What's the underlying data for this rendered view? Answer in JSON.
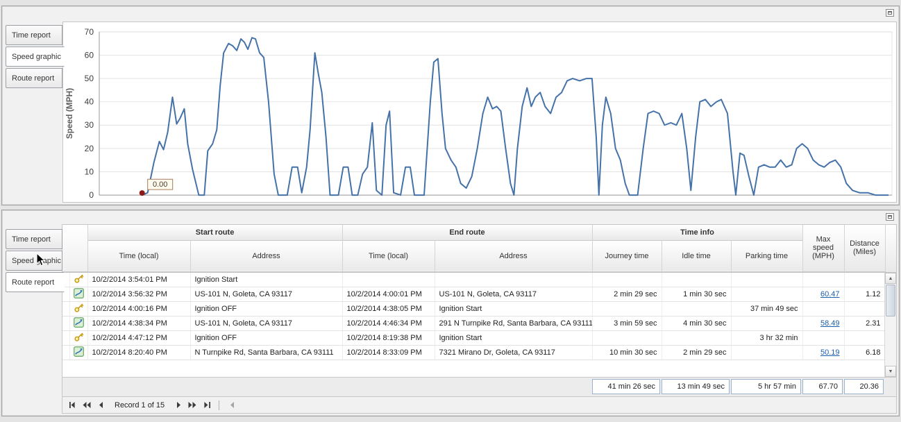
{
  "top_panel": {
    "tabs": [
      {
        "label": "Time report",
        "selected": false
      },
      {
        "label": "Speed graphic",
        "selected": true
      },
      {
        "label": "Route report",
        "selected": false
      }
    ]
  },
  "bottom_panel": {
    "tabs": [
      {
        "label": "Time report",
        "selected": false
      },
      {
        "label": "Speed graphic",
        "selected": false
      },
      {
        "label": "Route report",
        "selected": true
      }
    ]
  },
  "chart_data": {
    "type": "line",
    "title": "",
    "xlabel": "",
    "ylabel": "Speed (MPH)",
    "ylim": [
      0,
      70
    ],
    "yticks": [
      0,
      10,
      20,
      30,
      40,
      50,
      60,
      70
    ],
    "xticks": [],
    "grid": true,
    "legend": "none",
    "line_color": "#4472a8",
    "annotation": {
      "text": "0.00",
      "marker_color": "#8c1a18",
      "box_bg": "#fffcf0",
      "box_border": "#a87b5a"
    },
    "points_x_unit": "plot_px_0_1147",
    "points": [
      [
        62,
        0
      ],
      [
        70,
        1
      ],
      [
        79,
        14
      ],
      [
        87,
        23
      ],
      [
        93,
        19.5
      ],
      [
        99,
        27
      ],
      [
        106,
        42
      ],
      [
        112,
        30.5
      ],
      [
        117,
        33
      ],
      [
        123,
        37
      ],
      [
        128,
        22
      ],
      [
        135,
        11
      ],
      [
        144,
        0
      ],
      [
        152,
        0
      ],
      [
        157,
        19
      ],
      [
        164,
        22
      ],
      [
        170,
        28
      ],
      [
        175,
        47
      ],
      [
        180,
        61
      ],
      [
        187,
        65
      ],
      [
        193,
        64
      ],
      [
        199,
        62
      ],
      [
        205,
        67
      ],
      [
        210,
        65.5
      ],
      [
        215,
        62.5
      ],
      [
        221,
        67.5
      ],
      [
        226,
        67
      ],
      [
        232,
        61
      ],
      [
        238,
        59
      ],
      [
        245,
        40
      ],
      [
        253,
        9
      ],
      [
        259,
        0
      ],
      [
        272,
        0
      ],
      [
        279,
        12
      ],
      [
        287,
        12
      ],
      [
        293,
        1
      ],
      [
        300,
        12
      ],
      [
        305,
        28
      ],
      [
        312,
        61
      ],
      [
        317,
        52
      ],
      [
        322,
        44
      ],
      [
        328,
        25
      ],
      [
        334,
        0
      ],
      [
        346,
        0
      ],
      [
        353,
        12
      ],
      [
        360,
        12
      ],
      [
        366,
        0
      ],
      [
        374,
        0
      ],
      [
        381,
        9
      ],
      [
        388,
        12
      ],
      [
        395,
        31
      ],
      [
        401,
        2
      ],
      [
        409,
        0
      ],
      [
        415,
        30
      ],
      [
        420,
        36
      ],
      [
        426,
        1
      ],
      [
        436,
        0
      ],
      [
        443,
        12
      ],
      [
        450,
        12
      ],
      [
        456,
        0
      ],
      [
        470,
        0
      ],
      [
        479,
        40
      ],
      [
        484,
        57
      ],
      [
        490,
        58.5
      ],
      [
        496,
        35
      ],
      [
        501,
        20
      ],
      [
        509,
        15
      ],
      [
        516,
        12
      ],
      [
        523,
        5
      ],
      [
        531,
        3
      ],
      [
        539,
        8
      ],
      [
        547,
        20
      ],
      [
        555,
        35
      ],
      [
        562,
        42
      ],
      [
        569,
        37
      ],
      [
        575,
        38
      ],
      [
        581,
        36
      ],
      [
        588,
        20
      ],
      [
        595,
        5
      ],
      [
        600,
        0
      ],
      [
        605,
        20
      ],
      [
        612,
        38
      ],
      [
        619,
        46
      ],
      [
        625,
        38
      ],
      [
        631,
        42
      ],
      [
        638,
        44
      ],
      [
        645,
        38
      ],
      [
        653,
        35
      ],
      [
        661,
        42
      ],
      [
        669,
        44
      ],
      [
        677,
        49
      ],
      [
        685,
        50
      ],
      [
        695,
        49
      ],
      [
        705,
        50
      ],
      [
        713,
        50
      ],
      [
        719,
        25
      ],
      [
        723,
        0
      ],
      [
        728,
        30
      ],
      [
        733,
        42
      ],
      [
        740,
        35
      ],
      [
        747,
        20
      ],
      [
        754,
        15
      ],
      [
        761,
        5
      ],
      [
        767,
        0
      ],
      [
        779,
        0
      ],
      [
        787,
        20
      ],
      [
        794,
        35
      ],
      [
        802,
        36
      ],
      [
        810,
        35
      ],
      [
        818,
        30
      ],
      [
        827,
        31
      ],
      [
        835,
        30
      ],
      [
        843,
        35
      ],
      [
        850,
        20
      ],
      [
        856,
        2
      ],
      [
        863,
        25
      ],
      [
        869,
        40
      ],
      [
        877,
        41
      ],
      [
        885,
        38
      ],
      [
        893,
        40
      ],
      [
        900,
        41
      ],
      [
        909,
        35
      ],
      [
        917,
        10
      ],
      [
        921,
        0
      ],
      [
        927,
        18
      ],
      [
        933,
        17
      ],
      [
        940,
        8
      ],
      [
        947,
        0
      ],
      [
        954,
        12
      ],
      [
        962,
        13
      ],
      [
        970,
        12
      ],
      [
        978,
        12
      ],
      [
        986,
        15
      ],
      [
        994,
        12
      ],
      [
        1002,
        13
      ],
      [
        1009,
        20
      ],
      [
        1017,
        22
      ],
      [
        1025,
        20
      ],
      [
        1033,
        15
      ],
      [
        1041,
        13
      ],
      [
        1049,
        12
      ],
      [
        1057,
        14
      ],
      [
        1065,
        15
      ],
      [
        1073,
        12
      ],
      [
        1081,
        5
      ],
      [
        1090,
        2
      ],
      [
        1100,
        1
      ],
      [
        1112,
        1
      ],
      [
        1123,
        0
      ],
      [
        1142,
        0
      ]
    ]
  },
  "table": {
    "column_groups": [
      "Start route",
      "End route",
      "Time info"
    ],
    "columns": [
      "Time (local)",
      "Address",
      "Time (local)",
      "Address",
      "Journey time",
      "Idle time",
      "Parking time",
      "Max speed (MPH)",
      "Distance (Miles)"
    ],
    "rows": [
      {
        "icon": "key",
        "max_is_link": false,
        "cells": [
          "10/2/2014 3:54:01 PM",
          "Ignition Start",
          "",
          "",
          "",
          "",
          "",
          "",
          ""
        ]
      },
      {
        "icon": "route",
        "max_is_link": true,
        "cells": [
          "10/2/2014 3:56:32 PM",
          "US-101 N, Goleta, CA 93117",
          "10/2/2014 4:00:01 PM",
          "US-101 N, Goleta, CA 93117",
          "2 min 29 sec",
          "1 min 30 sec",
          "",
          "60.47",
          "1.12"
        ]
      },
      {
        "icon": "key",
        "max_is_link": false,
        "cells": [
          "10/2/2014 4:00:16 PM",
          "Ignition OFF",
          "10/2/2014 4:38:05 PM",
          "Ignition Start",
          "",
          "",
          "37 min 49 sec",
          "",
          ""
        ]
      },
      {
        "icon": "route",
        "max_is_link": true,
        "cells": [
          "10/2/2014 4:38:34 PM",
          "US-101 N, Goleta, CA 93117",
          "10/2/2014 4:46:34 PM",
          "291 N Turnpike Rd, Santa Barbara, CA 93111",
          "3 min 59 sec",
          "4 min 30 sec",
          "",
          "58.49",
          "2.31"
        ]
      },
      {
        "icon": "key",
        "max_is_link": false,
        "cells": [
          "10/2/2014 4:47:12 PM",
          "Ignition OFF",
          "10/2/2014 8:19:38 PM",
          "Ignition Start",
          "",
          "",
          "3 hr 32 min",
          "",
          ""
        ]
      },
      {
        "icon": "route",
        "max_is_link": true,
        "cells": [
          "10/2/2014 8:20:40 PM",
          "N Turnpike Rd, Santa Barbara, CA 93111",
          "10/2/2014 8:33:09 PM",
          "7321 Mirano Dr, Goleta, CA 93117",
          "10 min 30 sec",
          "2 min 29 sec",
          "",
          "50.19",
          "6.18"
        ]
      }
    ],
    "summary": [
      "41 min 26 sec",
      "13 min 49 sec",
      "5 hr 57 min",
      "67.70",
      "20.36"
    ]
  },
  "pager": {
    "label": "Record 1 of 15",
    "buttons_left": [
      "first",
      "prev-page",
      "prev"
    ],
    "buttons_right": [
      "next",
      "next-page",
      "last"
    ],
    "trailing_button": "scroll-left"
  },
  "colors": {
    "link": "#1a5dab",
    "chart_line": "#4472a8"
  }
}
